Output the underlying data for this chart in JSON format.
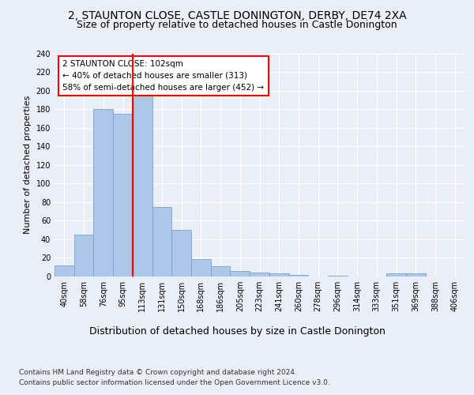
{
  "title1": "2, STAUNTON CLOSE, CASTLE DONINGTON, DERBY, DE74 2XA",
  "title2": "Size of property relative to detached houses in Castle Donington",
  "xlabel": "Distribution of detached houses by size in Castle Donington",
  "ylabel": "Number of detached properties",
  "categories": [
    "40sqm",
    "58sqm",
    "76sqm",
    "95sqm",
    "113sqm",
    "131sqm",
    "150sqm",
    "168sqm",
    "186sqm",
    "205sqm",
    "223sqm",
    "241sqm",
    "260sqm",
    "278sqm",
    "296sqm",
    "314sqm",
    "333sqm",
    "351sqm",
    "369sqm",
    "388sqm",
    "406sqm"
  ],
  "values": [
    12,
    45,
    180,
    175,
    195,
    75,
    50,
    19,
    11,
    6,
    4,
    3,
    2,
    0,
    1,
    0,
    0,
    3,
    3,
    0,
    0
  ],
  "bar_color": "#aec6e8",
  "bar_edge_color": "#6fa8d0",
  "vline_x": 3.5,
  "vline_color": "red",
  "annotation_text": "2 STAUNTON CLOSE: 102sqm\n← 40% of detached houses are smaller (313)\n58% of semi-detached houses are larger (452) →",
  "annotation_box_color": "white",
  "annotation_box_edge_color": "red",
  "ylim": [
    0,
    240
  ],
  "yticks": [
    0,
    20,
    40,
    60,
    80,
    100,
    120,
    140,
    160,
    180,
    200,
    220,
    240
  ],
  "footnote1": "Contains HM Land Registry data © Crown copyright and database right 2024.",
  "footnote2": "Contains public sector information licensed under the Open Government Licence v3.0.",
  "bg_color": "#eaeff7",
  "plot_bg_color": "#eaeff7",
  "title1_fontsize": 10,
  "title2_fontsize": 9,
  "xlabel_fontsize": 9,
  "ylabel_fontsize": 8,
  "tick_fontsize": 7,
  "annotation_fontsize": 7.5,
  "footnote_fontsize": 6.5
}
